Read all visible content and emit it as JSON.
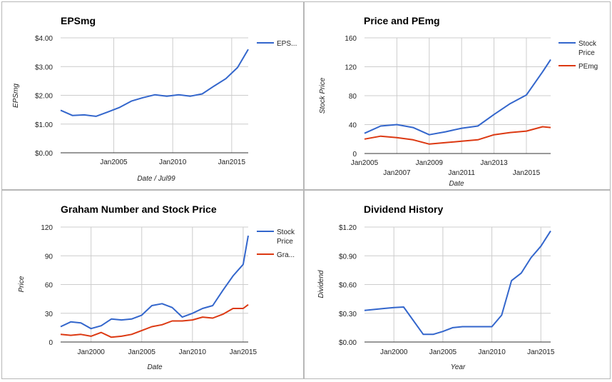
{
  "colors": {
    "series_blue": "#3366cc",
    "series_red": "#dc3912",
    "grid": "#cccccc",
    "baseline": "#333333"
  },
  "chart_data": [
    {
      "id": "c0",
      "type": "line",
      "title": "EPSmg",
      "xlabel": "Date / Jul99",
      "ylabel": "EPSmg",
      "xlim": [
        2000.5,
        2016.4
      ],
      "ylim": [
        0,
        4
      ],
      "y_ticks": [
        {
          "value": 0,
          "label": "$0.00"
        },
        {
          "value": 1,
          "label": "$1.00"
        },
        {
          "value": 2,
          "label": "$2.00"
        },
        {
          "value": 3,
          "label": "$3.00"
        },
        {
          "value": 4,
          "label": "$4.00"
        }
      ],
      "x_ticks": [
        {
          "value": 2005,
          "label": "Jan2005"
        },
        {
          "value": 2010,
          "label": "Jan2010"
        },
        {
          "value": 2015,
          "label": "Jan2015"
        }
      ],
      "grid": true,
      "legend_position": "right",
      "series": [
        {
          "name": "EPS...",
          "color": "#3366cc",
          "x": [
            2000.5,
            2001.5,
            2002.5,
            2003.5,
            2004.5,
            2005.5,
            2006.5,
            2007.5,
            2008.5,
            2009.5,
            2010.5,
            2011.5,
            2012.5,
            2013.5,
            2014.5,
            2015.5,
            2016.4
          ],
          "y": [
            1.48,
            1.3,
            1.32,
            1.27,
            1.42,
            1.58,
            1.8,
            1.92,
            2.02,
            1.97,
            2.02,
            1.97,
            2.05,
            2.32,
            2.58,
            2.97,
            3.6
          ]
        }
      ]
    },
    {
      "id": "c1",
      "type": "line",
      "title": "Price and PEmg",
      "xlabel": "Date",
      "ylabel": "Stock Price",
      "xlim": [
        2005.0,
        2016.5
      ],
      "ylim": [
        0,
        160
      ],
      "y_ticks": [
        {
          "value": 0,
          "label": "0"
        },
        {
          "value": 40,
          "label": "40"
        },
        {
          "value": 80,
          "label": "80"
        },
        {
          "value": 120,
          "label": "120"
        },
        {
          "value": 160,
          "label": "160"
        }
      ],
      "x_ticks_upper": [
        {
          "value": 2005,
          "label": "Jan2005"
        },
        {
          "value": 2009,
          "label": "Jan2009"
        },
        {
          "value": 2013,
          "label": "Jan2013"
        }
      ],
      "x_ticks_lower": [
        {
          "value": 2007,
          "label": "Jan2007"
        },
        {
          "value": 2011,
          "label": "Jan2011"
        },
        {
          "value": 2015,
          "label": "Jan2015"
        }
      ],
      "grid": true,
      "legend_position": "right",
      "series": [
        {
          "name_lines": [
            "Stock",
            "Price"
          ],
          "color": "#3366cc",
          "x": [
            2005.0,
            2006.0,
            2007.0,
            2008.0,
            2009.0,
            2010.0,
            2011.0,
            2012.0,
            2013.0,
            2014.0,
            2015.0,
            2016.0,
            2016.5
          ],
          "y": [
            28,
            38,
            40,
            36,
            26,
            30,
            35,
            38,
            54,
            69,
            81,
            113,
            130
          ]
        },
        {
          "name": "PEmg",
          "color": "#dc3912",
          "x": [
            2005.0,
            2006.0,
            2007.0,
            2008.0,
            2009.0,
            2010.0,
            2011.0,
            2012.0,
            2013.0,
            2014.0,
            2015.0,
            2016.0,
            2016.5
          ],
          "y": [
            20,
            24,
            22,
            19,
            13,
            15,
            17,
            19,
            26,
            29,
            31,
            37,
            36
          ]
        }
      ]
    },
    {
      "id": "c2",
      "type": "line",
      "title": "Graham Number and Stock Price",
      "xlabel": "Date",
      "ylabel": "Price",
      "xlim": [
        1997.0,
        2015.5
      ],
      "ylim": [
        0,
        120
      ],
      "y_ticks": [
        {
          "value": 0,
          "label": "0"
        },
        {
          "value": 30,
          "label": "30"
        },
        {
          "value": 60,
          "label": "60"
        },
        {
          "value": 90,
          "label": "90"
        },
        {
          "value": 120,
          "label": "120"
        }
      ],
      "x_ticks": [
        {
          "value": 2000,
          "label": "Jan2000"
        },
        {
          "value": 2005,
          "label": "Jan2005"
        },
        {
          "value": 2010,
          "label": "Jan2010"
        },
        {
          "value": 2015,
          "label": "Jan2015"
        }
      ],
      "grid": true,
      "legend_position": "right",
      "series": [
        {
          "name_lines": [
            "Stock",
            "Price"
          ],
          "color": "#3366cc",
          "x": [
            1997.0,
            1998.0,
            1999.0,
            2000.0,
            2001.0,
            2002.0,
            2003.0,
            2004.0,
            2005.0,
            2006.0,
            2007.0,
            2008.0,
            2009.0,
            2010.0,
            2011.0,
            2012.0,
            2013.0,
            2014.0,
            2015.0,
            2015.5
          ],
          "y": [
            16,
            21,
            20,
            14,
            17,
            24,
            23,
            24,
            28,
            38,
            40,
            36,
            26,
            30,
            35,
            38,
            54,
            69,
            81,
            111
          ]
        },
        {
          "name": "Gra...",
          "color": "#dc3912",
          "x": [
            1997.0,
            1998.0,
            1999.0,
            2000.0,
            2001.0,
            2002.0,
            2003.0,
            2004.0,
            2005.0,
            2006.0,
            2007.0,
            2008.0,
            2009.0,
            2010.0,
            2011.0,
            2012.0,
            2013.0,
            2014.0,
            2015.0,
            2015.5
          ],
          "y": [
            8,
            7,
            8,
            6,
            10,
            5,
            6,
            8,
            12,
            16,
            18,
            22,
            22,
            23,
            26,
            25,
            29,
            35,
            35,
            39
          ]
        }
      ]
    },
    {
      "id": "c3",
      "type": "line",
      "title": "Dividend History",
      "xlabel": "Year",
      "ylabel": "Dividend",
      "xlim": [
        1997.0,
        2016.0
      ],
      "ylim": [
        0,
        1.2
      ],
      "y_ticks": [
        {
          "value": 0,
          "label": "$0.00"
        },
        {
          "value": 0.3,
          "label": "$0.30"
        },
        {
          "value": 0.6,
          "label": "$0.60"
        },
        {
          "value": 0.9,
          "label": "$0.90"
        },
        {
          "value": 1.2,
          "label": "$1.20"
        }
      ],
      "x_ticks": [
        {
          "value": 2000,
          "label": "Jan2000"
        },
        {
          "value": 2005,
          "label": "Jan2005"
        },
        {
          "value": 2010,
          "label": "Jan2010"
        },
        {
          "value": 2015,
          "label": "Jan2015"
        }
      ],
      "grid": true,
      "legend_position": "none",
      "series": [
        {
          "color": "#3366cc",
          "x": [
            1997.0,
            1998.0,
            1999.0,
            2000.0,
            2001.0,
            2003.0,
            2004.0,
            2005.0,
            2006.0,
            2007.0,
            2008.0,
            2009.0,
            2010.0,
            2011.0,
            2012.0,
            2013.0,
            2014.0,
            2015.0,
            2016.0
          ],
          "y": [
            0.33,
            0.34,
            0.35,
            0.36,
            0.365,
            0.08,
            0.08,
            0.11,
            0.15,
            0.16,
            0.16,
            0.16,
            0.16,
            0.28,
            0.64,
            0.72,
            0.88,
            1.0,
            1.16
          ]
        }
      ]
    }
  ]
}
